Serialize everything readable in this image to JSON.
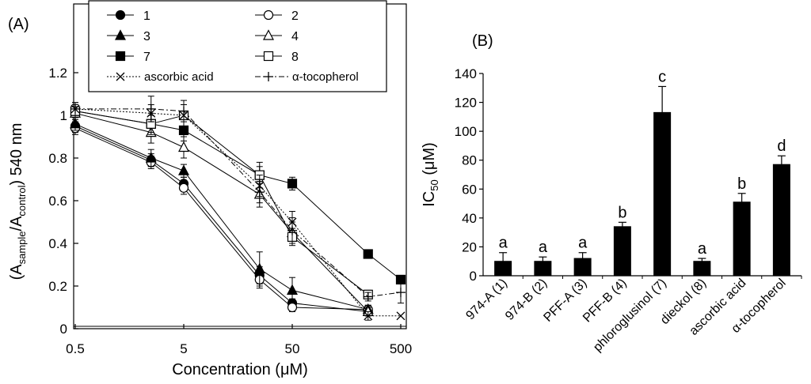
{
  "chart_data": [
    {
      "panel_label": "(A)",
      "type": "line",
      "x_scale": "log",
      "xlabel": "Concentration (μM)",
      "ylabel_parts": [
        "(A",
        "sample",
        "/A",
        "control",
        ") 540 nm"
      ],
      "xlim": [
        0.5,
        500
      ],
      "ylim": [
        0,
        1.2
      ],
      "x_ticks": [
        0.5,
        5,
        50,
        500
      ],
      "x_tick_labels": [
        "0.5",
        "5",
        "50",
        "500"
      ],
      "y_ticks": [
        0,
        0.2,
        0.4,
        0.6,
        0.8,
        1,
        1.2
      ],
      "y_tick_labels": [
        "0",
        "0.2",
        "0.4",
        "0.6",
        "0.8",
        "1",
        "1.2"
      ],
      "x": [
        0.5,
        2.5,
        5,
        25,
        50,
        250,
        500
      ],
      "series": [
        {
          "name": "1",
          "marker": "circle",
          "fill": "filled",
          "dash": "solid",
          "values": [
            0.95,
            0.79,
            0.68,
            0.25,
            0.12,
            0.08,
            null
          ],
          "errors": [
            0.03,
            0.03,
            0.03,
            0.04,
            0.02,
            0.02,
            null
          ]
        },
        {
          "name": "2",
          "marker": "circle",
          "fill": "open",
          "dash": "solid",
          "values": [
            0.94,
            0.78,
            0.66,
            0.23,
            0.1,
            0.09,
            null
          ],
          "errors": [
            0.03,
            0.03,
            0.03,
            0.04,
            0.02,
            0.02,
            null
          ]
        },
        {
          "name": "3",
          "marker": "triangle",
          "fill": "filled",
          "dash": "solid",
          "values": [
            0.96,
            0.8,
            0.74,
            0.28,
            0.18,
            0.09,
            null
          ],
          "errors": [
            0.03,
            0.04,
            0.03,
            0.08,
            0.06,
            0.02,
            null
          ]
        },
        {
          "name": "4",
          "marker": "triangle",
          "fill": "open",
          "dash": "solid",
          "values": [
            1.01,
            0.92,
            0.85,
            0.63,
            0.45,
            0.08,
            null
          ],
          "errors": [
            0.04,
            0.05,
            0.05,
            0.06,
            0.05,
            0.02,
            null
          ]
        },
        {
          "name": "7",
          "marker": "square",
          "fill": "filled",
          "dash": "solid",
          "values": [
            1.02,
            0.96,
            0.93,
            0.72,
            0.68,
            0.35,
            0.23
          ],
          "errors": [
            0.03,
            0.05,
            0.05,
            0.06,
            0.03,
            0.02,
            0.02
          ]
        },
        {
          "name": "8",
          "marker": "square",
          "fill": "open",
          "dash": "solid",
          "values": [
            1.02,
            0.96,
            1.0,
            0.72,
            0.43,
            0.16,
            null
          ],
          "errors": [
            0.03,
            0.04,
            0.05,
            0.04,
            0.04,
            0.02,
            null
          ]
        },
        {
          "name": "ascorbic acid",
          "marker": "x",
          "fill": "open",
          "dash": "dotted",
          "values": [
            1.03,
            1.01,
            1.0,
            0.67,
            0.5,
            0.06,
            0.06
          ],
          "errors": [
            0.03,
            0.04,
            0.05,
            0.05,
            0.05,
            0.02,
            null
          ]
        },
        {
          "name": "α-tocopherol",
          "marker": "plus",
          "fill": "open",
          "dash": "dashdot",
          "values": [
            1.03,
            1.03,
            1.02,
            0.64,
            0.46,
            0.15,
            0.17
          ],
          "errors": [
            0.03,
            0.06,
            0.05,
            0.05,
            0.06,
            0.02,
            0.05
          ]
        }
      ]
    },
    {
      "panel_label": "(B)",
      "type": "bar",
      "ylabel_parts": [
        "IC",
        "50",
        " (μM)"
      ],
      "ylim": [
        0,
        140
      ],
      "y_ticks": [
        0,
        20,
        40,
        60,
        80,
        100,
        120,
        140
      ],
      "y_tick_labels": [
        "0",
        "20",
        "40",
        "60",
        "80",
        "100",
        "120",
        "140"
      ],
      "categories": [
        "974-A (1)",
        "974-B (2)",
        "PFF-A (3)",
        "PFF-B (4)",
        "phloroglusinol (7)",
        "dieckol (8)",
        "ascorbic acid",
        "α-tocopherol"
      ],
      "values": [
        10,
        10,
        12,
        34,
        113,
        10,
        51,
        77
      ],
      "errors": [
        6,
        3,
        4,
        3,
        18,
        2,
        6,
        6
      ],
      "group_letters": [
        "a",
        "a",
        "a",
        "b",
        "c",
        "a",
        "b",
        "d"
      ],
      "bar_color": "#000000"
    }
  ]
}
